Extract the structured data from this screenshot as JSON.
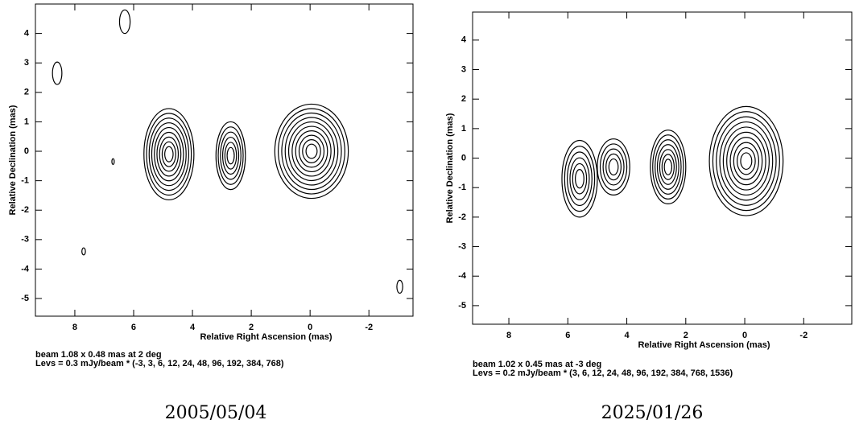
{
  "chart_data": [
    {
      "type": "contour",
      "xlabel": "Relative Right Ascension (mas)",
      "ylabel": "Relative Declination (mas)",
      "xlim": [
        9.34,
        -3.5
      ],
      "ylim": [
        -5.6,
        5.0
      ],
      "xticks": [
        8,
        6,
        4,
        2,
        0,
        -2
      ],
      "yticks": [
        4,
        3,
        2,
        1,
        0,
        -1,
        -2,
        -3,
        -4,
        -5
      ],
      "beam": "beam 1.08 x 0.48 mas at 2 deg",
      "levels": "Levs = 0.3 mJy/beam * (-3, 3, 6, 12, 24, 48, 96, 192, 384, 768)",
      "caption": "2005/05/04"
    },
    {
      "type": "contour",
      "xlabel": "Relative Right Ascension (mas)",
      "ylabel": "Relative Declination (mas)",
      "xlim": [
        9.23,
        -3.63
      ],
      "ylim": [
        -5.63,
        4.95
      ],
      "xticks": [
        8,
        6,
        4,
        2,
        0,
        -2
      ],
      "yticks": [
        4,
        3,
        2,
        1,
        0,
        -1,
        -2,
        -3,
        -4,
        -5
      ],
      "beam": "beam 1.02 x 0.45 mas at -3 deg",
      "levels": "Levs = 0.2 mJy/beam * (3, 6, 12, 24, 48, 96, 192, 384, 768, 1536)",
      "caption": "2025/01/26"
    }
  ]
}
